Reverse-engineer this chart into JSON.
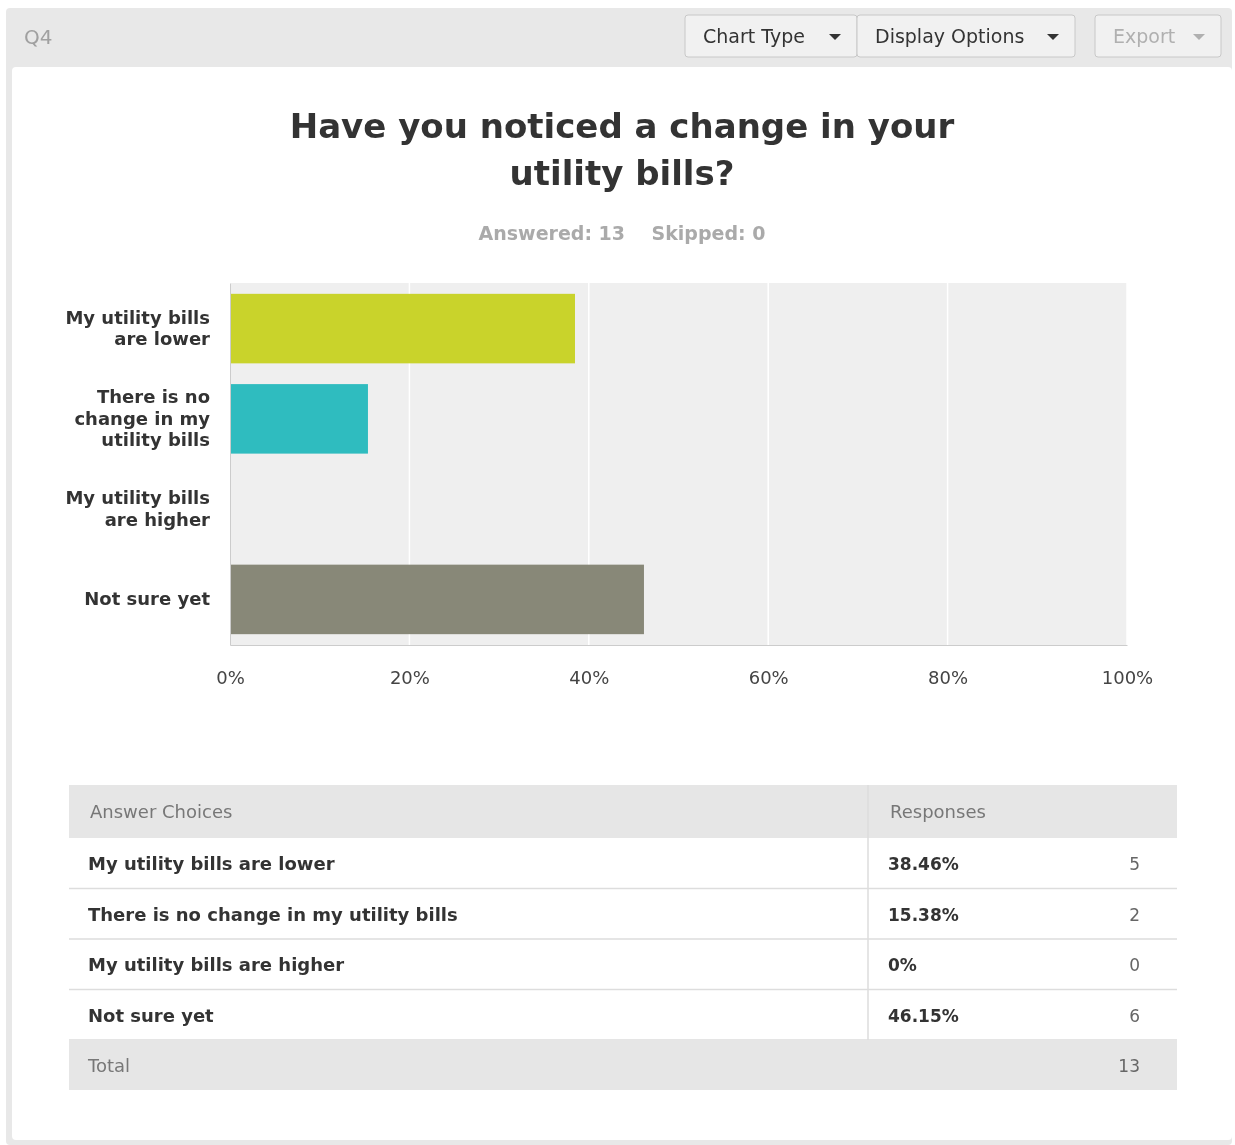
{
  "chart_data": {
    "type": "bar",
    "orientation": "horizontal",
    "title": "Have you noticed a change in your utility bills?",
    "subtitle": "Answered: 13    Skipped: 0",
    "categories": [
      "My utility bills are lower",
      "There is no change in my utility bills",
      "My utility bills are higher",
      "Not sure yet"
    ],
    "values": [
      38.46,
      15.38,
      0,
      46.15
    ],
    "colors": [
      "#c9d32b",
      "#2fbcbf",
      "#5d6f8a",
      "#888878"
    ],
    "xlim": [
      0,
      100
    ],
    "xticks": [
      {
        "value": 0,
        "label": "0%"
      },
      {
        "value": 20,
        "label": "20%"
      },
      {
        "value": 40,
        "label": "40%"
      },
      {
        "value": 60,
        "label": "60%"
      },
      {
        "value": 80,
        "label": "80%"
      },
      {
        "value": 100,
        "label": "100%"
      }
    ],
    "grid": "x",
    "annotations": [
      "Q4",
      "Chart Type",
      "Display Options",
      "Export",
      "Answer Choices",
      "Responses",
      "5",
      "2",
      "0",
      "6",
      "Total",
      "13",
      "38.46%",
      "15.38%",
      "0%",
      "46.15%"
    ]
  }
}
